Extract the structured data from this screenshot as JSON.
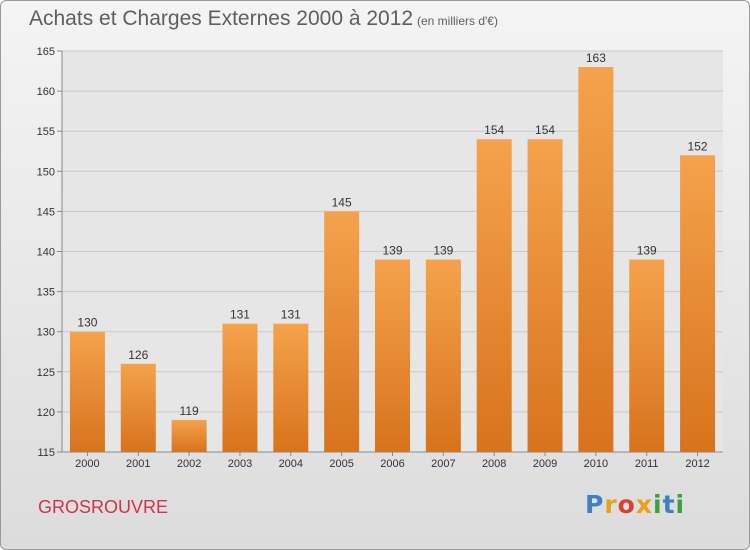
{
  "header": {
    "title": "Achats et Charges Externes 2000 à 2012",
    "unit": "(en milliers d'€)"
  },
  "footer": {
    "commune": "GROSROUVRE",
    "logo_letters": [
      "P",
      "r",
      "o",
      "x",
      "i",
      "t",
      "i"
    ]
  },
  "colors": {
    "bar_light": "#f5a24c",
    "bar_dark": "#d8731d",
    "commune": "#d3314f",
    "text": "#5f5f5f"
  },
  "chart_data": {
    "type": "bar",
    "title": "Achats et Charges Externes 2000 à 2012",
    "subtitle": "(en milliers d'€)",
    "categories": [
      "2000",
      "2001",
      "2002",
      "2003",
      "2004",
      "2005",
      "2006",
      "2007",
      "2008",
      "2009",
      "2010",
      "2011",
      "2012"
    ],
    "values": [
      130,
      126,
      119,
      131,
      131,
      145,
      139,
      139,
      154,
      154,
      163,
      139,
      152
    ],
    "ylim": [
      115,
      165
    ],
    "yticks": [
      115,
      120,
      125,
      130,
      135,
      140,
      145,
      150,
      155,
      160,
      165
    ],
    "grid": true,
    "data_labels": true
  }
}
